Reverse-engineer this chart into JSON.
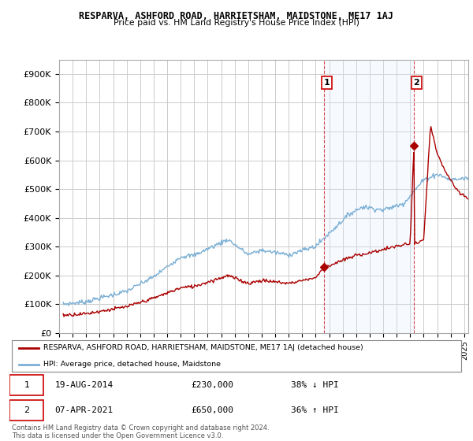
{
  "title": "RESPARVA, ASHFORD ROAD, HARRIETSHAM, MAIDSTONE, ME17 1AJ",
  "subtitle": "Price paid vs. HM Land Registry's House Price Index (HPI)",
  "ylabel_ticks": [
    "£0",
    "£100K",
    "£200K",
    "£300K",
    "£400K",
    "£500K",
    "£600K",
    "£700K",
    "£800K",
    "£900K"
  ],
  "ytick_values": [
    0,
    100000,
    200000,
    300000,
    400000,
    500000,
    600000,
    700000,
    800000,
    900000
  ],
  "ylim": [
    0,
    950000
  ],
  "xlim_start": 1995.3,
  "xlim_end": 2025.3,
  "hpi_color": "#7bafd4",
  "price_color": "#aa0000",
  "shade_color": "#ddeeff",
  "sale1_x": 2014.637,
  "sale1_y": 230000,
  "sale2_x": 2021.27,
  "sale2_y": 650000,
  "legend_label1": "RESPARVA, ASHFORD ROAD, HARRIETSHAM, MAIDSTONE, ME17 1AJ (detached house)",
  "legend_label2": "HPI: Average price, detached house, Maidstone",
  "footer": "Contains HM Land Registry data © Crown copyright and database right 2024.\nThis data is licensed under the Open Government Licence v3.0.",
  "background_color": "#ffffff",
  "grid_color": "#cccccc"
}
